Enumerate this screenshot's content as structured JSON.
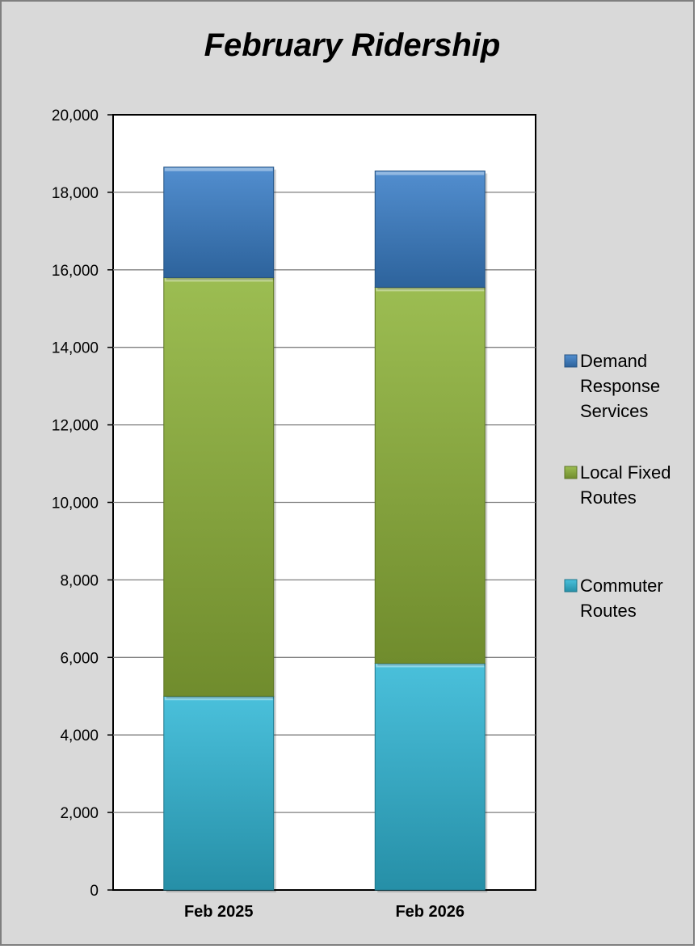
{
  "chart_data": {
    "type": "bar",
    "stacked": true,
    "title": "February Ridership",
    "xlabel": "",
    "ylabel": "",
    "categories": [
      "Feb 2025",
      "Feb 2026"
    ],
    "series": [
      {
        "name": "Commuter Routes",
        "values": [
          5000,
          5850
        ],
        "color": "#31b7d6"
      },
      {
        "name": "Local Fixed Routes",
        "values": [
          10800,
          9700
        ],
        "color": "#8fb43a"
      },
      {
        "name": "Demand Response Services",
        "values": [
          2850,
          3000
        ],
        "color": "#3a7fc8"
      }
    ],
    "ylim": [
      0,
      20000
    ],
    "yticks": [
      "0",
      "2,000",
      "4,000",
      "6,000",
      "8,000",
      "10,000",
      "12,000",
      "14,000",
      "16,000",
      "18,000",
      "20,000"
    ],
    "grid": true,
    "legend_position": "right",
    "legend_order": [
      {
        "label_lines": [
          "Demand",
          "Response",
          "Services"
        ],
        "color": "#3a7fc8"
      },
      {
        "label_lines": [
          "Local Fixed",
          "Routes"
        ],
        "color": "#8fb43a"
      },
      {
        "label_lines": [
          "Commuter",
          "Routes"
        ],
        "color": "#31b7d6"
      }
    ],
    "background_color": "#d9d9d9",
    "plot_background": "#ffffff"
  }
}
